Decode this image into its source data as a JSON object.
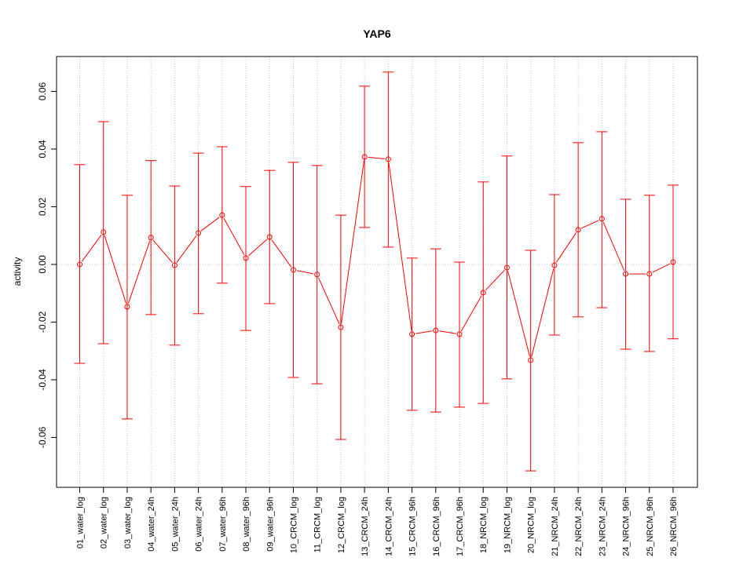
{
  "chart_data": {
    "type": "line",
    "title": "YAP6",
    "xlabel": "",
    "ylabel": "activity",
    "ylim": [
      -0.0773,
      0.0721
    ],
    "yticks": [
      "-0.06",
      "-0.04",
      "-0.02",
      "0.00",
      "0.02",
      "0.04",
      "0.06"
    ],
    "ytick_values": [
      -0.06,
      -0.04,
      -0.02,
      0.0,
      0.02,
      0.04,
      0.06
    ],
    "grid": true,
    "colors": {
      "series": "#ff0000",
      "grid": "#c8c8c8",
      "axis": "#000000"
    },
    "categories": [
      "01_water_log",
      "02_water_log",
      "03_water_log",
      "04_water_24h",
      "05_water_24h",
      "06_water_24h",
      "07_water_96h",
      "08_water_96h",
      "09_water_96h",
      "10_CRCM_log",
      "11_CRCM_log",
      "12_CRCM_log",
      "13_CRCM_24h",
      "14_CRCM_24h",
      "15_CRCM_96h",
      "16_CRCM_96h",
      "17_CRCM_96h",
      "18_NRCM_log",
      "19_NRCM_log",
      "20_NRCM_log",
      "21_NRCM_24h",
      "22_NRCM_24h",
      "23_NRCM_24h",
      "24_NRCM_96h",
      "25_NRCM_96h",
      "26_NRCM_96h"
    ],
    "values": [
      0.0,
      0.0112,
      -0.0147,
      0.0093,
      -0.0003,
      0.0109,
      0.0171,
      0.0022,
      0.0095,
      -0.0019,
      -0.0035,
      -0.0218,
      0.0373,
      0.0365,
      -0.0242,
      -0.0229,
      -0.0242,
      -0.0098,
      -0.0011,
      -0.0332,
      -0.0003,
      0.012,
      0.0158,
      -0.0033,
      -0.0033,
      0.0008
    ],
    "upper": [
      0.0346,
      0.0495,
      0.024,
      0.036,
      0.0272,
      0.0386,
      0.0408,
      0.027,
      0.0326,
      0.0354,
      0.0343,
      0.0171,
      0.0618,
      0.0667,
      0.0022,
      0.0054,
      0.0008,
      0.0286,
      0.0376,
      0.0049,
      0.0242,
      0.0422,
      0.046,
      0.0226,
      0.024,
      0.0275
    ],
    "lower": [
      -0.0343,
      -0.0275,
      -0.0536,
      -0.0174,
      -0.028,
      -0.0171,
      -0.0065,
      -0.0229,
      -0.0136,
      -0.0392,
      -0.0414,
      -0.0607,
      0.0128,
      0.006,
      -0.0506,
      -0.0512,
      -0.0495,
      -0.0482,
      -0.0397,
      -0.0716,
      -0.0245,
      -0.0182,
      -0.015,
      -0.0294,
      -0.0302,
      -0.0258
    ]
  }
}
